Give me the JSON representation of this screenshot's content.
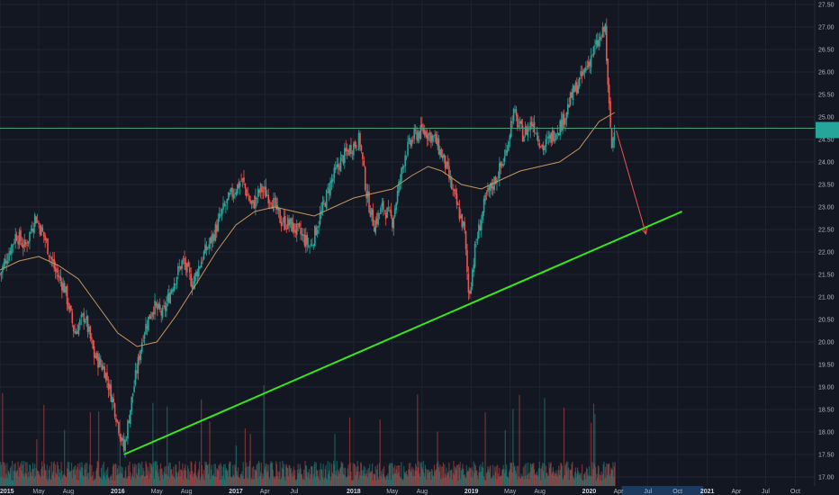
{
  "chart_data": {
    "type": "candlestick",
    "y_axis": {
      "position": "right",
      "range": [
        16.8,
        27.6
      ],
      "ticks": [
        17.0,
        17.5,
        18.0,
        18.5,
        19.0,
        19.5,
        20.0,
        20.5,
        21.0,
        21.5,
        22.0,
        22.5,
        23.0,
        23.5,
        24.0,
        24.5,
        25.0,
        25.5,
        26.0,
        26.5,
        27.0,
        27.5
      ],
      "tick_labels": [
        "17.00",
        "17.50",
        "18.00",
        "18.50",
        "19.00",
        "19.50",
        "20.00",
        "20.50",
        "21.00",
        "21.50",
        "22.00",
        "22.50",
        "23.00",
        "23.50",
        "24.00",
        "24.50",
        "25.00",
        "25.50",
        "26.00",
        "26.50",
        "27.00",
        "27.50"
      ]
    },
    "x_axis": {
      "range": [
        "2015-01-01",
        "2021-11-30"
      ],
      "ticks": [
        {
          "date": "2015-01-01",
          "label": "2015",
          "major": true
        },
        {
          "date": "2015-05-01",
          "label": "May",
          "major": false
        },
        {
          "date": "2015-08-01",
          "label": "Aug",
          "major": false
        },
        {
          "date": "2016-01-01",
          "label": "2016",
          "major": true
        },
        {
          "date": "2016-05-01",
          "label": "May",
          "major": false
        },
        {
          "date": "2016-08-01",
          "label": "Aug",
          "major": false
        },
        {
          "date": "2017-01-01",
          "label": "2017",
          "major": true
        },
        {
          "date": "2017-04-01",
          "label": "Apr",
          "major": false
        },
        {
          "date": "2017-07-01",
          "label": "Jul",
          "major": false
        },
        {
          "date": "2018-01-01",
          "label": "2018",
          "major": true
        },
        {
          "date": "2018-05-01",
          "label": "May",
          "major": false
        },
        {
          "date": "2018-08-01",
          "label": "Aug",
          "major": false
        },
        {
          "date": "2019-01-01",
          "label": "2019",
          "major": true
        },
        {
          "date": "2019-05-01",
          "label": "May",
          "major": false
        },
        {
          "date": "2019-08-01",
          "label": "Aug",
          "major": false
        },
        {
          "date": "2020-01-01",
          "label": "2020",
          "major": true
        },
        {
          "date": "2020-04-01",
          "label": "Apr",
          "major": false
        },
        {
          "date": "2020-07-01",
          "label": "Jul",
          "major": false
        },
        {
          "date": "2020-10-01",
          "label": "Oct",
          "major": false
        },
        {
          "date": "2021-01-01",
          "label": "2021",
          "major": true
        },
        {
          "date": "2021-04-01",
          "label": "Apr",
          "major": false
        },
        {
          "date": "2021-07-01",
          "label": "Jul",
          "major": false
        },
        {
          "date": "2021-10-01",
          "label": "Oct",
          "major": false
        }
      ]
    },
    "price_path": [
      [
        "2015-01-01",
        21.5
      ],
      [
        "2015-02-20",
        22.4
      ],
      [
        "2015-03-20",
        22.1
      ],
      [
        "2015-04-20",
        22.8
      ],
      [
        "2015-05-20",
        22.3
      ],
      [
        "2015-06-20",
        21.6
      ],
      [
        "2015-07-20",
        21.2
      ],
      [
        "2015-08-20",
        20.2
      ],
      [
        "2015-09-20",
        20.6
      ],
      [
        "2015-10-20",
        19.7
      ],
      [
        "2015-11-20",
        19.4
      ],
      [
        "2015-12-20",
        18.6
      ],
      [
        "2016-01-20",
        17.6
      ],
      [
        "2016-02-15",
        18.8
      ],
      [
        "2016-03-20",
        20.2
      ],
      [
        "2016-04-20",
        20.8
      ],
      [
        "2016-05-20",
        20.6
      ],
      [
        "2016-06-20",
        21.3
      ],
      [
        "2016-07-20",
        21.8
      ],
      [
        "2016-08-20",
        21.3
      ],
      [
        "2016-09-20",
        21.9
      ],
      [
        "2016-10-20",
        22.3
      ],
      [
        "2016-11-20",
        22.9
      ],
      [
        "2016-12-20",
        23.3
      ],
      [
        "2017-01-20",
        23.6
      ],
      [
        "2017-02-20",
        23.0
      ],
      [
        "2017-03-20",
        23.4
      ],
      [
        "2017-04-20",
        23.2
      ],
      [
        "2017-05-20",
        22.7
      ],
      [
        "2017-06-20",
        22.6
      ],
      [
        "2017-07-20",
        22.4
      ],
      [
        "2017-08-20",
        22.1
      ],
      [
        "2017-09-20",
        22.8
      ],
      [
        "2017-10-20",
        23.5
      ],
      [
        "2017-11-20",
        24.0
      ],
      [
        "2017-12-20",
        24.3
      ],
      [
        "2018-01-20",
        24.5
      ],
      [
        "2018-02-10",
        23.3
      ],
      [
        "2018-03-05",
        22.6
      ],
      [
        "2018-04-01",
        23.0
      ],
      [
        "2018-05-01",
        22.7
      ],
      [
        "2018-06-10",
        24.2
      ],
      [
        "2018-07-10",
        24.6
      ],
      [
        "2018-08-10",
        24.7
      ],
      [
        "2018-09-10",
        24.5
      ],
      [
        "2018-10-10",
        24.0
      ],
      [
        "2018-11-10",
        23.2
      ],
      [
        "2018-12-10",
        22.5
      ],
      [
        "2018-12-24",
        21.0
      ],
      [
        "2019-01-15",
        22.2
      ],
      [
        "2019-02-15",
        23.2
      ],
      [
        "2019-03-15",
        23.6
      ],
      [
        "2019-04-15",
        24.1
      ],
      [
        "2019-05-10",
        25.1
      ],
      [
        "2019-06-10",
        24.6
      ],
      [
        "2019-07-10",
        24.9
      ],
      [
        "2019-08-10",
        24.3
      ],
      [
        "2019-09-10",
        24.6
      ],
      [
        "2019-10-10",
        24.9
      ],
      [
        "2019-11-10",
        25.5
      ],
      [
        "2019-12-10",
        25.9
      ],
      [
        "2020-01-10",
        26.4
      ],
      [
        "2020-01-25",
        26.6
      ],
      [
        "2020-02-10",
        26.8
      ],
      [
        "2020-02-20",
        27.0
      ],
      [
        "2020-02-28",
        25.6
      ],
      [
        "2020-03-05",
        25.0
      ],
      [
        "2020-03-12",
        24.2
      ],
      [
        "2020-03-18",
        24.9
      ],
      [
        "2020-03-22",
        24.6
      ]
    ],
    "moving_average": [
      [
        "2015-01-01",
        21.6
      ],
      [
        "2015-03-01",
        21.8
      ],
      [
        "2015-05-01",
        21.9
      ],
      [
        "2015-07-01",
        21.7
      ],
      [
        "2015-09-01",
        21.4
      ],
      [
        "2015-11-01",
        20.8
      ],
      [
        "2016-01-01",
        20.2
      ],
      [
        "2016-03-01",
        19.9
      ],
      [
        "2016-05-01",
        20.0
      ],
      [
        "2016-07-01",
        20.6
      ],
      [
        "2016-09-01",
        21.3
      ],
      [
        "2016-11-01",
        22.0
      ],
      [
        "2017-01-01",
        22.6
      ],
      [
        "2017-03-01",
        22.9
      ],
      [
        "2017-05-01",
        23.0
      ],
      [
        "2017-07-01",
        22.9
      ],
      [
        "2017-09-01",
        22.8
      ],
      [
        "2017-11-01",
        23.0
      ],
      [
        "2018-01-01",
        23.2
      ],
      [
        "2018-03-01",
        23.3
      ],
      [
        "2018-05-01",
        23.4
      ],
      [
        "2018-07-01",
        23.7
      ],
      [
        "2018-08-20",
        23.9
      ],
      [
        "2018-10-01",
        23.8
      ],
      [
        "2018-12-01",
        23.5
      ],
      [
        "2019-02-01",
        23.4
      ],
      [
        "2019-04-01",
        23.6
      ],
      [
        "2019-06-01",
        23.8
      ],
      [
        "2019-08-01",
        23.9
      ],
      [
        "2019-10-01",
        24.0
      ],
      [
        "2019-12-01",
        24.3
      ],
      [
        "2020-02-01",
        24.9
      ],
      [
        "2020-03-20",
        25.1
      ]
    ],
    "volume_baseline_date": "2020-03-22",
    "horizontal_level": 24.75,
    "trendline": {
      "from": [
        "2016-01-20",
        17.5
      ],
      "to": [
        "2020-10-15",
        22.9
      ]
    },
    "projection_arrow": {
      "from": [
        "2020-03-25",
        24.7
      ],
      "to": [
        "2020-06-25",
        22.4
      ]
    },
    "price_tags": [
      {
        "value": 24.8
      },
      {
        "value": 24.62
      }
    ],
    "colors": {
      "background": "#131722",
      "grid": "#1f2433",
      "up": "#26a69a",
      "down": "#ef5350",
      "moving_average": "#c8955f",
      "horizontal_level": "#4a9d7a",
      "trendline": "#39e61a",
      "projection_arrow": "#ef5350",
      "price_tag": "#26a69a",
      "axis_text": "#b2b5be",
      "highlight": "#1c3a5e"
    }
  }
}
